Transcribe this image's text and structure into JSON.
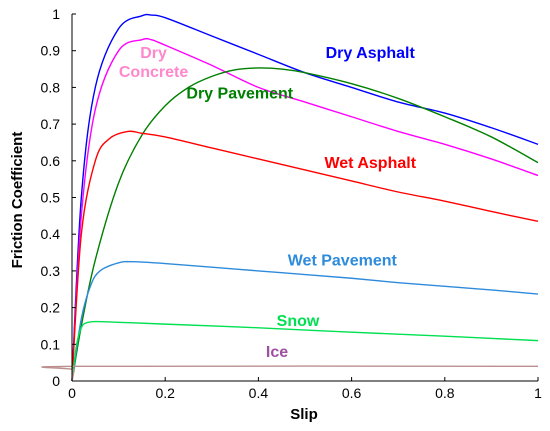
{
  "chart_data": {
    "type": "line",
    "xlabel": "Slip",
    "ylabel": "Friction Coefficient",
    "xlim": [
      0,
      1
    ],
    "ylim": [
      0,
      1
    ],
    "x_ticks": [
      "0",
      "0.2",
      "0.4",
      "0.6",
      "0.8",
      "1"
    ],
    "y_ticks": [
      "0",
      "0.1",
      "0.2",
      "0.3",
      "0.4",
      "0.5",
      "0.6",
      "0.7",
      "0.8",
      "0.9",
      "1"
    ],
    "grid": false,
    "series": [
      {
        "name": "Dry Asphalt",
        "color": "#0000ff",
        "x": [
          0,
          0.02,
          0.05,
          0.1,
          0.15,
          0.17,
          0.2,
          0.3,
          0.4,
          0.5,
          0.6,
          0.7,
          0.8,
          0.9,
          1.0
        ],
        "y": [
          0,
          0.5,
          0.8,
          0.96,
          0.995,
          0.997,
          0.99,
          0.94,
          0.89,
          0.84,
          0.8,
          0.76,
          0.73,
          0.69,
          0.645
        ]
      },
      {
        "name": "Dry Concrete",
        "color": "#ff00ff",
        "x": [
          0,
          0.02,
          0.05,
          0.1,
          0.15,
          0.17,
          0.2,
          0.3,
          0.4,
          0.5,
          0.6,
          0.7,
          0.8,
          0.9,
          1.0
        ],
        "y": [
          0,
          0.45,
          0.74,
          0.9,
          0.93,
          0.93,
          0.915,
          0.86,
          0.8,
          0.76,
          0.72,
          0.68,
          0.645,
          0.605,
          0.56
        ]
      },
      {
        "name": "Dry Pavement",
        "color": "#008000",
        "x": [
          0,
          0.02,
          0.05,
          0.1,
          0.15,
          0.2,
          0.25,
          0.3,
          0.35,
          0.4,
          0.45,
          0.5,
          0.6,
          0.7,
          0.8,
          0.9,
          1.0
        ],
        "y": [
          0,
          0.15,
          0.33,
          0.54,
          0.67,
          0.75,
          0.8,
          0.83,
          0.848,
          0.853,
          0.85,
          0.84,
          0.81,
          0.77,
          0.72,
          0.665,
          0.595
        ]
      },
      {
        "name": "Wet Asphalt",
        "color": "#ff0000",
        "x": [
          0,
          0.02,
          0.05,
          0.08,
          0.12,
          0.15,
          0.2,
          0.3,
          0.4,
          0.5,
          0.6,
          0.7,
          0.8,
          0.9,
          1.0
        ],
        "y": [
          0,
          0.4,
          0.6,
          0.66,
          0.68,
          0.675,
          0.665,
          0.635,
          0.605,
          0.575,
          0.545,
          0.515,
          0.49,
          0.462,
          0.435
        ]
      },
      {
        "name": "Wet Pavement",
        "color": "#2e8bdc",
        "x": [
          0,
          0.02,
          0.04,
          0.06,
          0.1,
          0.13,
          0.2,
          0.3,
          0.4,
          0.5,
          0.6,
          0.7,
          0.8,
          0.9,
          1.0
        ],
        "y": [
          0,
          0.17,
          0.26,
          0.3,
          0.322,
          0.325,
          0.32,
          0.31,
          0.3,
          0.29,
          0.28,
          0.268,
          0.258,
          0.248,
          0.237
        ]
      },
      {
        "name": "Snow",
        "color": "#00e050",
        "x": [
          0,
          0.01,
          0.02,
          0.03,
          0.05,
          0.1,
          0.2,
          0.4,
          0.6,
          0.8,
          1.0
        ],
        "y": [
          0,
          0.1,
          0.145,
          0.158,
          0.162,
          0.16,
          0.155,
          0.145,
          0.133,
          0.122,
          0.11
        ]
      },
      {
        "name": "Ice",
        "color": "#bc8f8f",
        "x": [
          0,
          0.005,
          0.01,
          1.0
        ],
        "y": [
          0,
          0.03,
          0.04,
          0.04
        ]
      }
    ],
    "annotations": [
      {
        "series": "Dry Asphalt",
        "lines": [
          "Dry Asphalt"
        ],
        "color": "#0000ff",
        "x": 0.64,
        "y": 0.88
      },
      {
        "series": "Dry Concrete",
        "lines": [
          "Dry",
          "Concrete"
        ],
        "color": "#ff88cc",
        "x": 0.175,
        "y": 0.88
      },
      {
        "series": "Dry Pavement",
        "lines": [
          "Dry Pavement"
        ],
        "color": "#008000",
        "x": 0.36,
        "y": 0.77
      },
      {
        "series": "Wet Asphalt",
        "lines": [
          "Wet Asphalt"
        ],
        "color": "#ff0000",
        "x": 0.64,
        "y": 0.58
      },
      {
        "series": "Wet Pavement",
        "lines": [
          "Wet Pavement"
        ],
        "color": "#2e8bdc",
        "x": 0.58,
        "y": 0.315
      },
      {
        "series": "Snow",
        "lines": [
          "Snow"
        ],
        "color": "#00e050",
        "x": 0.485,
        "y": 0.15
      },
      {
        "series": "Ice",
        "lines": [
          "Ice"
        ],
        "color": "#a050a0",
        "x": 0.44,
        "y": 0.065
      }
    ]
  }
}
